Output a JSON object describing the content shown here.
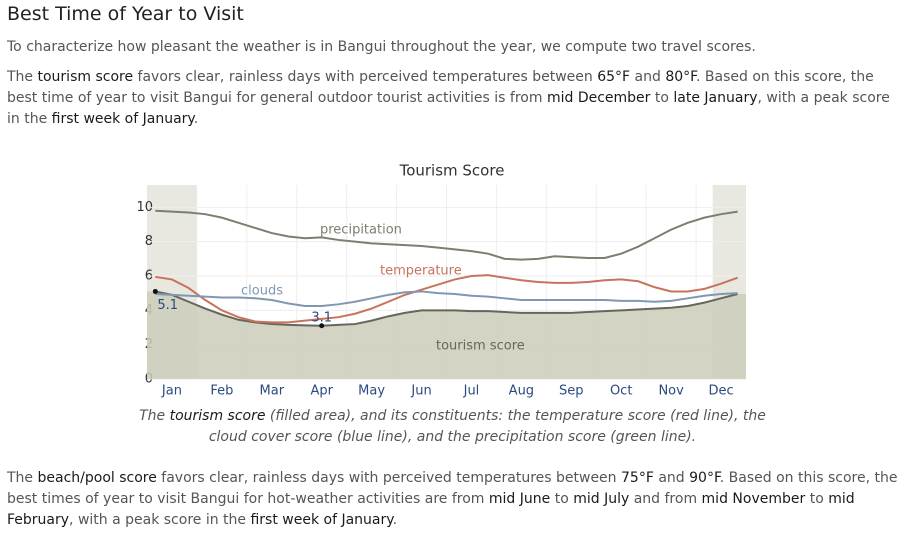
{
  "heading": "Best Time of Year to Visit",
  "paragraphs": [
    {
      "segments": [
        {
          "text": "To characterize how pleasant the weather is in Bangui throughout the year, we compute two travel scores."
        }
      ]
    },
    {
      "segments": [
        {
          "text": "The "
        },
        {
          "text": "tourism score",
          "strong": true
        },
        {
          "text": " favors clear, rainless days with perceived temperatures between "
        },
        {
          "text": "65°F",
          "strong": true
        },
        {
          "text": " and "
        },
        {
          "text": "80°F",
          "strong": true
        },
        {
          "text": ". Based on this score, the best time of year to visit Bangui for general outdoor tourist activities is from "
        },
        {
          "text": "mid December",
          "strong": true
        },
        {
          "text": " to "
        },
        {
          "text": "late January",
          "strong": true
        },
        {
          "text": ", with a peak score in the "
        },
        {
          "text": "first week of January",
          "strong": true
        },
        {
          "text": "."
        }
      ]
    },
    {
      "segments": [
        {
          "text": "The "
        },
        {
          "text": "beach/pool score",
          "strong": true
        },
        {
          "text": " favors clear, rainless days with perceived temperatures between "
        },
        {
          "text": "75°F",
          "strong": true
        },
        {
          "text": " and "
        },
        {
          "text": "90°F",
          "strong": true
        },
        {
          "text": ". Based on this score, the best times of year to visit Bangui for hot-weather activities are from "
        },
        {
          "text": "mid June",
          "strong": true
        },
        {
          "text": " to "
        },
        {
          "text": "mid July",
          "strong": true
        },
        {
          "text": " and from "
        },
        {
          "text": "mid November",
          "strong": true
        },
        {
          "text": " to "
        },
        {
          "text": "mid February",
          "strong": true
        },
        {
          "text": ", with a peak score in the "
        },
        {
          "text": "first week of January",
          "strong": true
        },
        {
          "text": "."
        }
      ]
    }
  ],
  "chart_data": {
    "type": "line",
    "title": "Tourism Score",
    "categories": [
      null,
      "Jan",
      null,
      null,
      "Feb",
      null,
      null,
      "Mar",
      null,
      null,
      "Apr",
      null,
      null,
      "May",
      null,
      null,
      "Jun",
      null,
      null,
      "Jul",
      null,
      null,
      "Aug",
      null,
      null,
      "Sep",
      null,
      null,
      "Oct",
      null,
      null,
      "Nov",
      null,
      null,
      "Dec",
      null
    ],
    "ylim": [
      0,
      11.3
    ],
    "yticks": [
      0,
      2,
      4,
      6,
      8,
      10
    ],
    "grid": true,
    "series": [
      {
        "name": "precipitation",
        "color": "#7a8070",
        "values": [
          9.8,
          9.75,
          9.7,
          9.6,
          9.4,
          9.1,
          8.8,
          8.5,
          8.3,
          8.2,
          8.25,
          8.1,
          8.0,
          7.9,
          7.85,
          7.8,
          7.75,
          7.65,
          7.55,
          7.45,
          7.3,
          7.0,
          6.95,
          7.0,
          7.15,
          7.1,
          7.05,
          7.05,
          7.3,
          7.7,
          8.2,
          8.7,
          9.1,
          9.4,
          9.6,
          9.75
        ]
      },
      {
        "name": "temperature",
        "color": "#c8735c",
        "values": [
          5.95,
          5.8,
          5.3,
          4.6,
          4.0,
          3.6,
          3.35,
          3.3,
          3.3,
          3.4,
          3.5,
          3.6,
          3.8,
          4.1,
          4.5,
          4.9,
          5.2,
          5.5,
          5.8,
          6.0,
          6.05,
          5.9,
          5.75,
          5.65,
          5.6,
          5.6,
          5.65,
          5.75,
          5.8,
          5.7,
          5.35,
          5.1,
          5.1,
          5.25,
          5.55,
          5.9
        ]
      },
      {
        "name": "clouds",
        "color": "#7f98b2",
        "values": [
          4.95,
          4.9,
          4.85,
          4.8,
          4.75,
          4.75,
          4.7,
          4.6,
          4.4,
          4.25,
          4.25,
          4.35,
          4.5,
          4.7,
          4.9,
          5.05,
          5.1,
          5.0,
          4.95,
          4.85,
          4.8,
          4.7,
          4.6,
          4.6,
          4.6,
          4.6,
          4.6,
          4.6,
          4.55,
          4.55,
          4.5,
          4.55,
          4.7,
          4.85,
          4.95,
          5.0
        ]
      },
      {
        "name": "tourism score",
        "color": "#66665a",
        "fill": "#cdcdbb",
        "values": [
          5.1,
          4.9,
          4.5,
          4.1,
          3.75,
          3.45,
          3.3,
          3.2,
          3.15,
          3.12,
          3.1,
          3.15,
          3.2,
          3.4,
          3.65,
          3.85,
          4.0,
          4.0,
          4.0,
          3.95,
          3.95,
          3.9,
          3.85,
          3.85,
          3.85,
          3.85,
          3.9,
          3.95,
          4.0,
          4.05,
          4.1,
          4.15,
          4.25,
          4.45,
          4.7,
          4.95
        ]
      }
    ],
    "annotations": [
      {
        "series": 3,
        "index": 0,
        "value": 5.1
      },
      {
        "series": 3,
        "index": 10,
        "value": 3.1
      }
    ],
    "caption": {
      "segments": [
        {
          "text": "The "
        },
        {
          "text": "tourism score",
          "strong": true
        },
        {
          "text": " (filled area), and its constituents: the temperature score (red line), the cloud cover score (blue line), and the precipitation score (green line)."
        }
      ]
    }
  }
}
